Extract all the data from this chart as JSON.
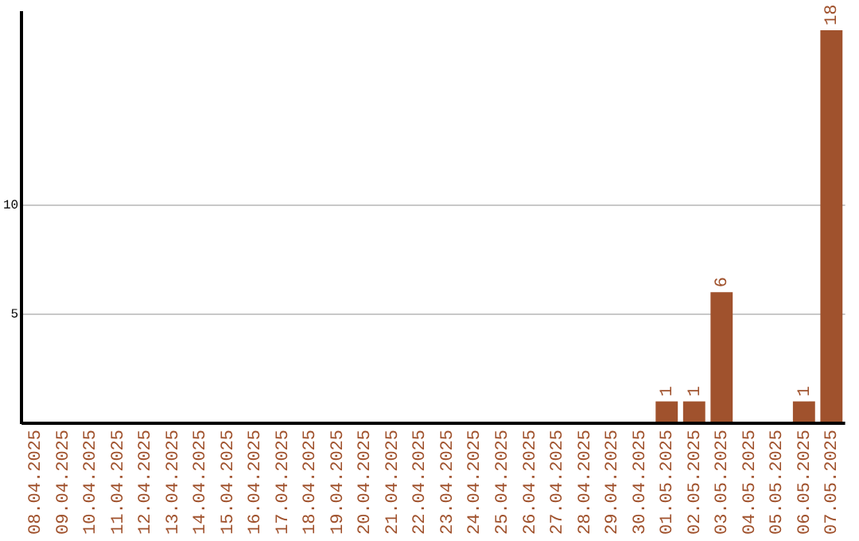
{
  "chart_data": {
    "type": "bar",
    "categories": [
      "08.04.2025",
      "09.04.2025",
      "10.04.2025",
      "11.04.2025",
      "12.04.2025",
      "13.04.2025",
      "14.04.2025",
      "15.04.2025",
      "16.04.2025",
      "17.04.2025",
      "18.04.2025",
      "19.04.2025",
      "20.04.2025",
      "21.04.2025",
      "22.04.2025",
      "23.04.2025",
      "24.04.2025",
      "25.04.2025",
      "26.04.2025",
      "27.04.2025",
      "28.04.2025",
      "29.04.2025",
      "30.04.2025",
      "01.05.2025",
      "02.05.2025",
      "03.05.2025",
      "04.05.2025",
      "05.05.2025",
      "06.05.2025",
      "07.05.2025"
    ],
    "values": [
      0,
      0,
      0,
      0,
      0,
      0,
      0,
      0,
      0,
      0,
      0,
      0,
      0,
      0,
      0,
      0,
      0,
      0,
      0,
      0,
      0,
      0,
      0,
      1,
      1,
      6,
      0,
      0,
      1,
      18
    ],
    "value_labels": [
      null,
      null,
      null,
      null,
      null,
      null,
      null,
      null,
      null,
      null,
      null,
      null,
      null,
      null,
      null,
      null,
      null,
      null,
      null,
      null,
      null,
      null,
      null,
      "1",
      "1",
      "6",
      null,
      null,
      "1",
      "18"
    ],
    "color": "#a0522d",
    "ylim": [
      0,
      18.8
    ],
    "yticks": [
      5,
      10
    ],
    "grid": "y",
    "legend": false
  }
}
